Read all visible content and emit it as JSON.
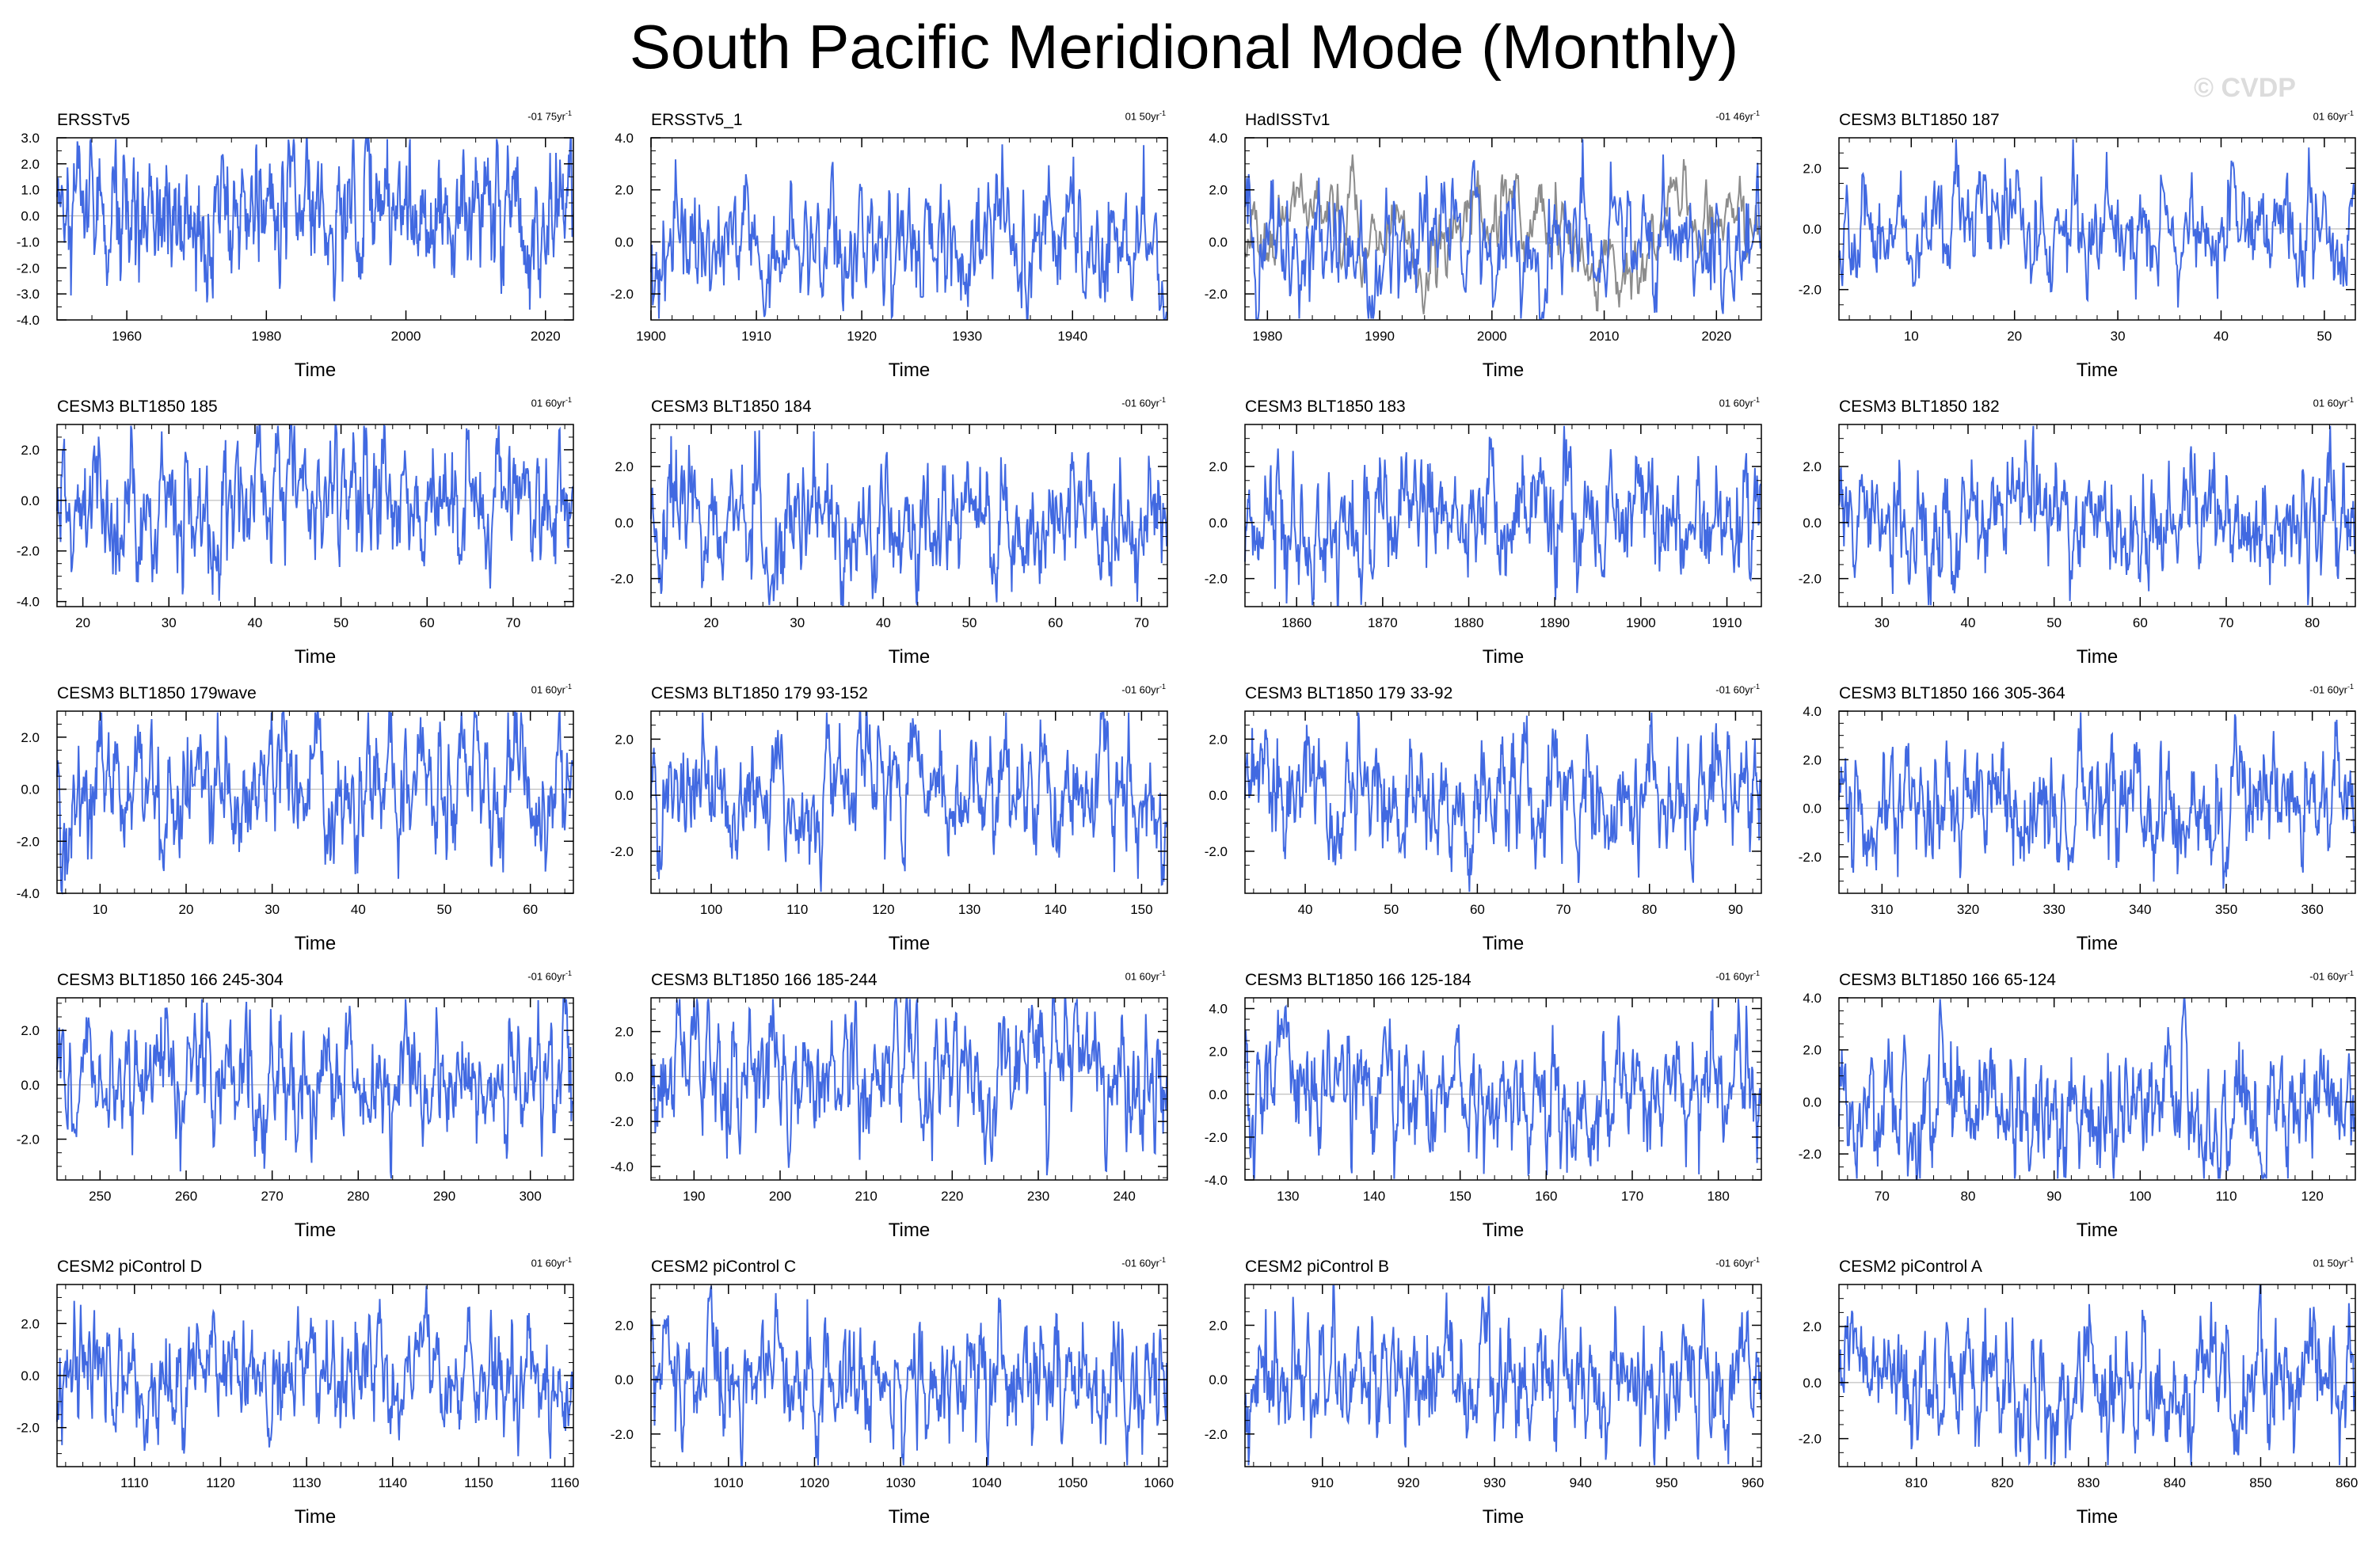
{
  "title": "South Pacific Meridional Mode (Monthly)",
  "watermark": "© CVDP",
  "colors": {
    "series": "#4169E1",
    "observed": "#8c8c8c",
    "axis": "#000000",
    "zero_line": "#b0b0b0"
  },
  "chart_data": [
    {
      "type": "line",
      "title": "ERSSTv5",
      "trend": "-01 75yr",
      "xlabel": "Time",
      "xlim": [
        1950,
        2024
      ],
      "ylim": [
        -4,
        3
      ],
      "yticks": [
        -4,
        -3,
        -2,
        -1,
        0,
        1,
        2,
        3
      ],
      "yfmt": 1,
      "xticks": [
        1960,
        1980,
        2000,
        2020
      ],
      "seed": 11
    },
    {
      "type": "line",
      "title": "ERSSTv5_1",
      "trend": "01 50yr",
      "xlabel": "Time",
      "xlim": [
        1900,
        1949
      ],
      "ylim": [
        -3,
        4
      ],
      "yticks": [
        -2,
        0,
        2,
        4
      ],
      "yfmt": 1,
      "xticks": [
        1900,
        1910,
        1920,
        1930,
        1940
      ],
      "seed": 12
    },
    {
      "type": "line",
      "title": "HadISSTv1",
      "trend": "-01 46yr",
      "xlabel": "Time",
      "xlim": [
        1978,
        2024
      ],
      "ylim": [
        -3,
        4
      ],
      "yticks": [
        -2,
        0,
        2,
        4
      ],
      "yfmt": 1,
      "xticks": [
        1980,
        1990,
        2000,
        2010,
        2020
      ],
      "overlay": true,
      "seed": 13
    },
    {
      "type": "line",
      "title": "CESM3 BLT1850 187",
      "trend": "01 60yr",
      "xlabel": "Time",
      "xlim": [
        3,
        53
      ],
      "ylim": [
        -3,
        3
      ],
      "yticks": [
        -2,
        0,
        2
      ],
      "yfmt": 1,
      "xticks": [
        10,
        20,
        30,
        40,
        50
      ],
      "seed": 14
    },
    {
      "type": "line",
      "title": "CESM3 BLT1850 185",
      "trend": "01 60yr",
      "xlabel": "Time",
      "xlim": [
        17,
        77
      ],
      "ylim": [
        -4.2,
        3
      ],
      "yticks": [
        -4,
        -2,
        0,
        2
      ],
      "yfmt": 1,
      "xticks": [
        20,
        30,
        40,
        50,
        60,
        70
      ],
      "seed": 21
    },
    {
      "type": "line",
      "title": "CESM3 BLT1850 184",
      "trend": "-01 60yr",
      "xlabel": "Time",
      "xlim": [
        13,
        73
      ],
      "ylim": [
        -3,
        3.5
      ],
      "yticks": [
        -2,
        0,
        2
      ],
      "yfmt": 1,
      "xticks": [
        20,
        30,
        40,
        50,
        60,
        70
      ],
      "seed": 22
    },
    {
      "type": "line",
      "title": "CESM3 BLT1850 183",
      "trend": "01 60yr",
      "xlabel": "Time",
      "xlim": [
        1854,
        1914
      ],
      "ylim": [
        -3,
        3.5
      ],
      "yticks": [
        -2,
        0,
        2
      ],
      "yfmt": 1,
      "xticks": [
        1860,
        1870,
        1880,
        1890,
        1900,
        1910
      ],
      "seed": 23
    },
    {
      "type": "line",
      "title": "CESM3 BLT1850 182",
      "trend": "01 60yr",
      "xlabel": "Time",
      "xlim": [
        25,
        85
      ],
      "ylim": [
        -3,
        3.5
      ],
      "yticks": [
        -2,
        0,
        2
      ],
      "yfmt": 1,
      "xticks": [
        30,
        40,
        50,
        60,
        70,
        80
      ],
      "seed": 24
    },
    {
      "type": "line",
      "title": "CESM3 BLT1850 179wave",
      "trend": "01 60yr",
      "xlabel": "Time",
      "xlim": [
        5,
        65
      ],
      "ylim": [
        -4,
        3
      ],
      "yticks": [
        -4,
        -2,
        0,
        2
      ],
      "yfmt": 1,
      "xticks": [
        10,
        20,
        30,
        40,
        50,
        60
      ],
      "seed": 31
    },
    {
      "type": "line",
      "title": "CESM3 BLT1850 179 93-152",
      "trend": "-01 60yr",
      "xlabel": "Time",
      "xlim": [
        93,
        153
      ],
      "ylim": [
        -3.5,
        3
      ],
      "yticks": [
        -2,
        0,
        2
      ],
      "yfmt": 1,
      "xticks": [
        100,
        110,
        120,
        130,
        140,
        150
      ],
      "seed": 32
    },
    {
      "type": "line",
      "title": "CESM3 BLT1850 179 33-92",
      "trend": "-01 60yr",
      "xlabel": "Time",
      "xlim": [
        33,
        93
      ],
      "ylim": [
        -3.5,
        3
      ],
      "yticks": [
        -2,
        0,
        2
      ],
      "yfmt": 1,
      "xticks": [
        40,
        50,
        60,
        70,
        80,
        90
      ],
      "seed": 33
    },
    {
      "type": "line",
      "title": "CESM3 BLT1850 166 305-364",
      "trend": "-01 60yr",
      "xlabel": "Time",
      "xlim": [
        305,
        365
      ],
      "ylim": [
        -3.5,
        4
      ],
      "yticks": [
        -2,
        0,
        2,
        4
      ],
      "yfmt": 1,
      "xticks": [
        310,
        320,
        330,
        340,
        350,
        360
      ],
      "seed": 34
    },
    {
      "type": "line",
      "title": "CESM3 BLT1850 166 245-304",
      "trend": "-01 60yr",
      "xlabel": "Time",
      "xlim": [
        245,
        305
      ],
      "ylim": [
        -3.5,
        3.2
      ],
      "yticks": [
        -2,
        0,
        2
      ],
      "yfmt": 1,
      "xticks": [
        250,
        260,
        270,
        280,
        290,
        300
      ],
      "seed": 41
    },
    {
      "type": "line",
      "title": "CESM3 BLT1850 166 185-244",
      "trend": "01 60yr",
      "xlabel": "Time",
      "xlim": [
        185,
        245
      ],
      "ylim": [
        -4.6,
        3.5
      ],
      "yticks": [
        -4,
        -2,
        0,
        2
      ],
      "yfmt": 1,
      "xticks": [
        190,
        200,
        210,
        220,
        230,
        240
      ],
      "seed": 42
    },
    {
      "type": "line",
      "title": "CESM3 BLT1850 166 125-184",
      "trend": "-01 60yr",
      "xlabel": "Time",
      "xlim": [
        125,
        185
      ],
      "ylim": [
        -4,
        4.5
      ],
      "yticks": [
        -4,
        -2,
        0,
        2,
        4
      ],
      "yfmt": 1,
      "xticks": [
        130,
        140,
        150,
        160,
        170,
        180
      ],
      "seed": 43
    },
    {
      "type": "line",
      "title": "CESM3 BLT1850 166 65-124",
      "trend": "-01 60yr",
      "xlabel": "Time",
      "xlim": [
        65,
        125
      ],
      "ylim": [
        -3,
        4
      ],
      "yticks": [
        -2,
        0,
        2,
        4
      ],
      "yfmt": 1,
      "xticks": [
        70,
        80,
        90,
        100,
        110,
        120
      ],
      "seed": 44
    },
    {
      "type": "line",
      "title": "CESM2 piControl D",
      "trend": "01 60yr",
      "xlabel": "Time",
      "xlim": [
        1101,
        1161
      ],
      "ylim": [
        -3.5,
        3.5
      ],
      "yticks": [
        -2,
        0,
        2
      ],
      "yfmt": 1,
      "xticks": [
        1110,
        1120,
        1130,
        1140,
        1150,
        1160
      ],
      "seed": 51
    },
    {
      "type": "line",
      "title": "CESM2 piControl C",
      "trend": "-01 60yr",
      "xlabel": "Time",
      "xlim": [
        1001,
        1061
      ],
      "ylim": [
        -3.2,
        3.5
      ],
      "yticks": [
        -2,
        0,
        2
      ],
      "yfmt": 1,
      "xticks": [
        1010,
        1020,
        1030,
        1040,
        1050,
        1060
      ],
      "seed": 52
    },
    {
      "type": "line",
      "title": "CESM2 piControl B",
      "trend": "-01 60yr",
      "xlabel": "Time",
      "xlim": [
        901,
        961
      ],
      "ylim": [
        -3.2,
        3.5
      ],
      "yticks": [
        -2,
        0,
        2
      ],
      "yfmt": 1,
      "xticks": [
        910,
        920,
        930,
        940,
        950,
        960
      ],
      "seed": 53
    },
    {
      "type": "line",
      "title": "CESM2 piControl A",
      "trend": "01 50yr",
      "xlabel": "Time",
      "xlim": [
        801,
        861
      ],
      "ylim": [
        -3,
        3.5
      ],
      "yticks": [
        -2,
        0,
        2
      ],
      "yfmt": 1,
      "xticks": [
        810,
        820,
        830,
        840,
        850,
        860
      ],
      "seed": 54
    }
  ]
}
